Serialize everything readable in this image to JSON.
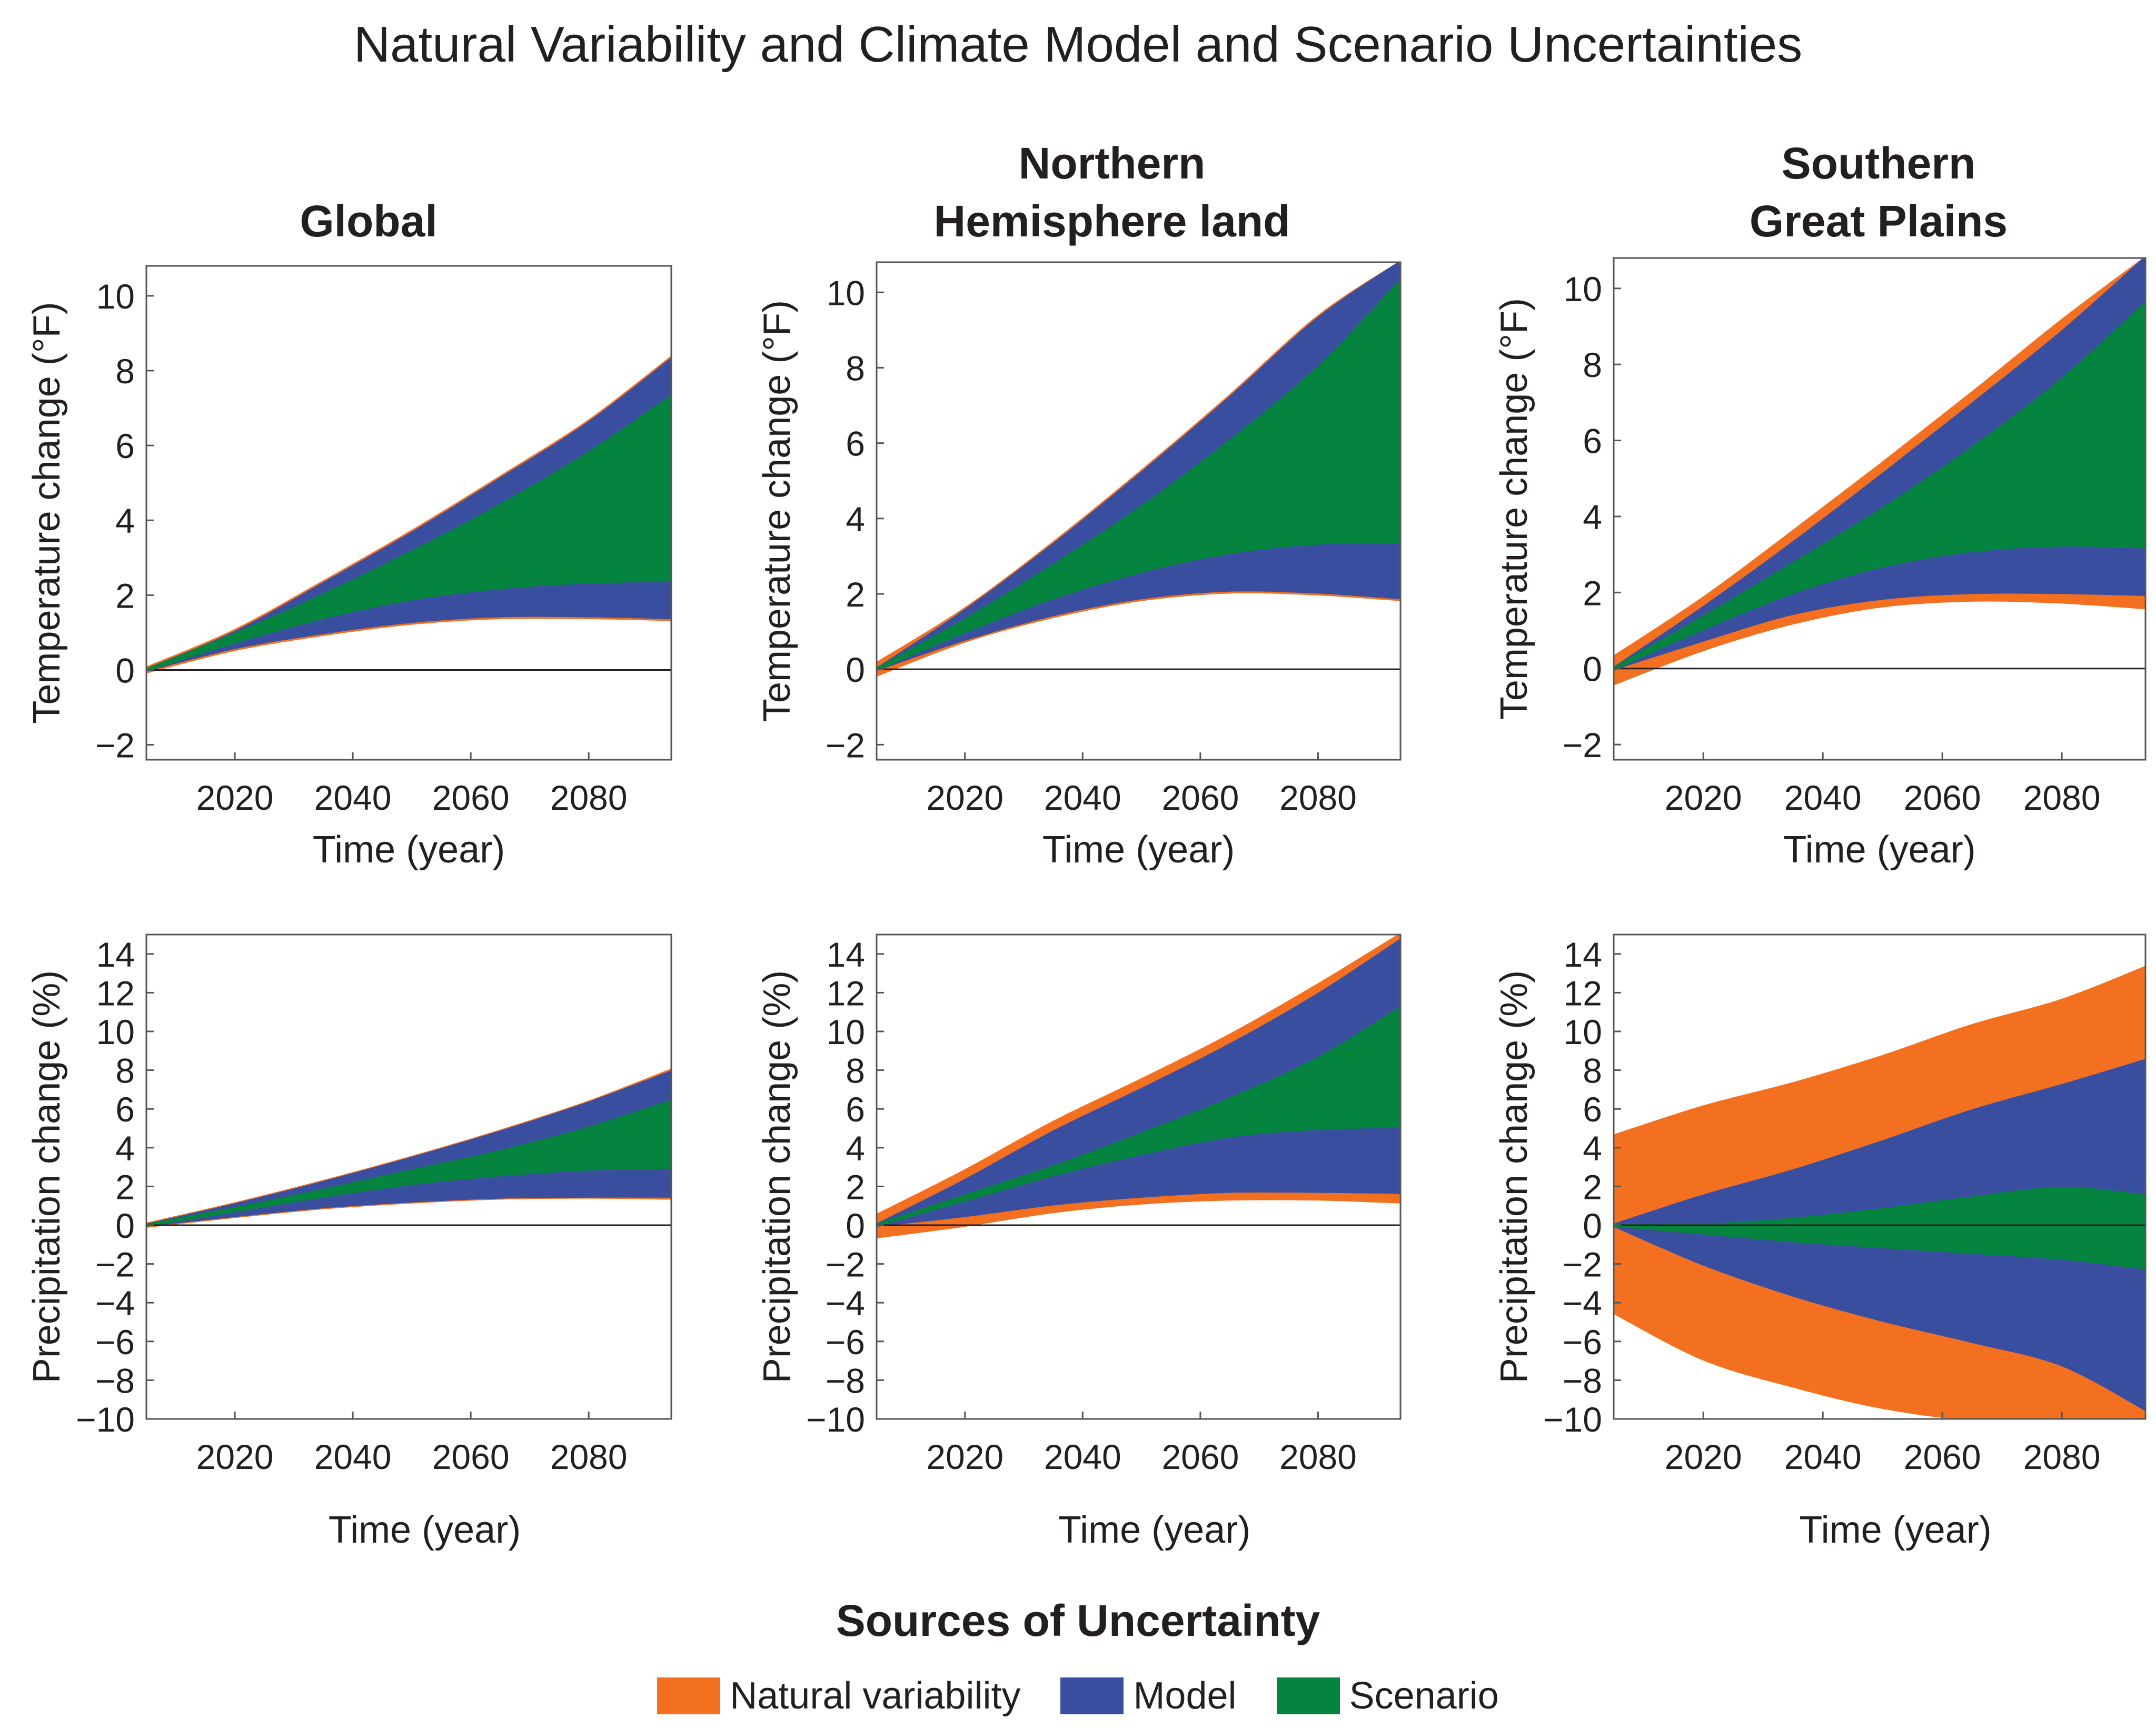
{
  "title": "Natural Variability and Climate Model and Scenario Uncertainties",
  "colors": {
    "natural": "#f37021",
    "model": "#3a4ea0",
    "scenario": "#05843f",
    "axis": "#231f20"
  },
  "column_titles": [
    {
      "line1": "",
      "line2": "Global"
    },
    {
      "line1": "Northern",
      "line2": "Hemisphere land"
    },
    {
      "line1": "Southern",
      "line2": "Great Plains"
    }
  ],
  "legend": {
    "title": "Sources of Uncertainty",
    "items": [
      {
        "label": "Natural variability",
        "color": "#f37021"
      },
      {
        "label": "Model",
        "color": "#3a4ea0"
      },
      {
        "label": "Scenario",
        "color": "#05843f"
      }
    ]
  },
  "chart_data": [
    {
      "id": "global-temp",
      "type": "area",
      "title": "Global",
      "xlabel": "Time (year)",
      "ylabel": "Temperature change (°F)",
      "xlim": [
        2005,
        2094
      ],
      "ylim": [
        -2.4,
        10.8
      ],
      "xticks": [
        2020,
        2040,
        2060,
        2080
      ],
      "yticks": [
        -2,
        0,
        2,
        4,
        6,
        8,
        10
      ],
      "x": [
        2005,
        2020,
        2035,
        2050,
        2065,
        2080,
        2094
      ],
      "bands": {
        "scenario": {
          "lower": [
            0,
            0.75,
            1.4,
            1.9,
            2.2,
            2.35,
            2.4
          ],
          "upper": [
            0,
            0.95,
            2.0,
            3.15,
            4.4,
            5.8,
            7.3
          ]
        },
        "model": {
          "lower": [
            0,
            0.6,
            1.0,
            1.3,
            1.45,
            1.45,
            1.4
          ],
          "upper": [
            0,
            1.0,
            2.3,
            3.65,
            5.1,
            6.6,
            8.3
          ]
        },
        "natural": {
          "lower": [
            -0.05,
            0.55,
            0.95,
            1.25,
            1.4,
            1.4,
            1.35
          ],
          "upper": [
            0.05,
            1.05,
            2.35,
            3.7,
            5.15,
            6.65,
            8.35
          ]
        }
      }
    },
    {
      "id": "nh-temp",
      "type": "area",
      "title": "Northern Hemisphere land",
      "xlabel": "Time (year)",
      "ylabel": "Temperature change (°F)",
      "xlim": [
        2005,
        2094
      ],
      "ylim": [
        -2.4,
        10.8
      ],
      "xticks": [
        2020,
        2040,
        2060,
        2080
      ],
      "yticks": [
        -2,
        0,
        2,
        4,
        6,
        8,
        10
      ],
      "x": [
        2005,
        2020,
        2035,
        2050,
        2065,
        2080,
        2094
      ],
      "bands": {
        "scenario": {
          "lower": [
            0,
            1.0,
            1.9,
            2.6,
            3.1,
            3.35,
            3.4
          ],
          "upper": [
            0,
            1.3,
            2.75,
            4.3,
            6.05,
            8.0,
            10.3
          ]
        },
        "model": {
          "lower": [
            0,
            0.8,
            1.45,
            1.9,
            2.1,
            2.05,
            1.9
          ],
          "upper": [
            0,
            1.55,
            3.3,
            5.2,
            7.2,
            9.3,
            10.8
          ]
        },
        "natural": {
          "lower": [
            -0.15,
            0.75,
            1.4,
            1.85,
            2.05,
            2.0,
            1.85
          ],
          "upper": [
            0.15,
            1.6,
            3.35,
            5.25,
            7.25,
            9.35,
            10.8
          ]
        }
      }
    },
    {
      "id": "sgp-temp",
      "type": "area",
      "title": "Southern Great Plains",
      "xlabel": "Time (year)",
      "ylabel": "Temperature change (°F)",
      "xlim": [
        2005,
        2094
      ],
      "ylim": [
        -2.4,
        10.8
      ],
      "xticks": [
        2020,
        2040,
        2060,
        2080
      ],
      "yticks": [
        -2,
        0,
        2,
        4,
        6,
        8,
        10
      ],
      "x": [
        2005,
        2020,
        2035,
        2050,
        2065,
        2080,
        2094
      ],
      "bands": {
        "scenario": {
          "lower": [
            0,
            1.05,
            2.0,
            2.7,
            3.1,
            3.25,
            3.2
          ],
          "upper": [
            0,
            1.35,
            2.75,
            4.2,
            5.8,
            7.6,
            9.6
          ]
        },
        "model": {
          "lower": [
            0,
            0.75,
            1.45,
            1.85,
            2.0,
            2.0,
            1.95
          ],
          "upper": [
            0,
            1.6,
            3.3,
            5.1,
            6.95,
            8.85,
            10.8
          ]
        },
        "natural": {
          "lower": [
            -0.4,
            0.5,
            1.2,
            1.65,
            1.8,
            1.75,
            1.6
          ],
          "upper": [
            0.3,
            1.85,
            3.6,
            5.4,
            7.25,
            9.15,
            10.8
          ]
        }
      }
    },
    {
      "id": "global-precip",
      "type": "area",
      "title": "Global",
      "xlabel": "Time (year)",
      "ylabel": "Precipitation change (%)",
      "xlim": [
        2005,
        2094
      ],
      "ylim": [
        -10,
        15
      ],
      "xticks": [
        2020,
        2040,
        2060,
        2080
      ],
      "yticks": [
        -10,
        -8,
        -6,
        -4,
        -2,
        0,
        2,
        4,
        6,
        8,
        10,
        12,
        14
      ],
      "x": [
        2005,
        2020,
        2035,
        2050,
        2065,
        2080,
        2094
      ],
      "bands": {
        "scenario": {
          "lower": [
            0,
            0.75,
            1.5,
            2.15,
            2.6,
            2.9,
            3.0
          ],
          "upper": [
            0,
            0.85,
            1.8,
            2.8,
            3.8,
            5.0,
            6.4
          ]
        },
        "model": {
          "lower": [
            0,
            0.5,
            0.95,
            1.25,
            1.45,
            1.5,
            1.5
          ],
          "upper": [
            0,
            1.05,
            2.2,
            3.45,
            4.8,
            6.3,
            7.9
          ]
        },
        "natural": {
          "lower": [
            -0.05,
            0.45,
            0.9,
            1.2,
            1.4,
            1.45,
            1.4
          ],
          "upper": [
            0.05,
            1.1,
            2.25,
            3.5,
            4.85,
            6.35,
            8.0
          ]
        }
      }
    },
    {
      "id": "nh-precip",
      "type": "area",
      "title": "Northern Hemisphere land",
      "xlabel": "Time (year)",
      "ylabel": "Precipitation change (%)",
      "xlim": [
        2005,
        2094
      ],
      "ylim": [
        -10,
        15
      ],
      "xticks": [
        2020,
        2040,
        2060,
        2080
      ],
      "yticks": [
        -10,
        -8,
        -6,
        -4,
        -2,
        0,
        2,
        4,
        6,
        8,
        10,
        12,
        14
      ],
      "x": [
        2005,
        2020,
        2035,
        2050,
        2065,
        2080,
        2094
      ],
      "bands": {
        "scenario": {
          "lower": [
            0,
            1.3,
            2.6,
            3.7,
            4.6,
            5.0,
            5.1
          ],
          "upper": [
            0,
            1.5,
            3.0,
            4.7,
            6.5,
            8.6,
            11.2
          ]
        },
        "model": {
          "lower": [
            0,
            0.5,
            1.1,
            1.5,
            1.75,
            1.75,
            1.7
          ],
          "upper": [
            0,
            2.3,
            4.8,
            7.0,
            9.3,
            11.9,
            14.7
          ]
        },
        "natural": {
          "lower": [
            -0.6,
            0.0,
            0.7,
            1.15,
            1.35,
            1.35,
            1.2
          ],
          "upper": [
            0.5,
            2.8,
            5.3,
            7.5,
            9.8,
            12.4,
            15.0
          ]
        }
      }
    },
    {
      "id": "sgp-precip",
      "type": "area",
      "title": "Southern Great Plains",
      "xlabel": "Time (year)",
      "ylabel": "Precipitation change (%)",
      "xlim": [
        2005,
        2094
      ],
      "ylim": [
        -10,
        15
      ],
      "xticks": [
        2020,
        2040,
        2060,
        2080
      ],
      "yticks": [
        -10,
        -8,
        -6,
        -4,
        -2,
        0,
        2,
        4,
        6,
        8,
        10,
        12,
        14
      ],
      "x": [
        2005,
        2020,
        2035,
        2050,
        2065,
        2080,
        2094
      ],
      "bands": {
        "scenario": {
          "lower": [
            0,
            -0.4,
            -0.8,
            -1.1,
            -1.4,
            -1.7,
            -2.2
          ],
          "upper": [
            0,
            0.0,
            0.3,
            0.8,
            1.4,
            1.9,
            1.5
          ]
        },
        "model": {
          "lower": [
            0,
            -2.0,
            -3.6,
            -4.9,
            -6.0,
            -7.2,
            -9.5
          ],
          "upper": [
            0,
            1.5,
            2.8,
            4.3,
            5.9,
            7.2,
            8.5
          ]
        },
        "natural": {
          "lower": [
            -4.5,
            -6.9,
            -8.3,
            -9.4,
            -10.0,
            -10.0,
            -10.0
          ],
          "upper": [
            4.6,
            6.1,
            7.3,
            8.7,
            10.3,
            11.6,
            13.3
          ]
        }
      }
    }
  ]
}
